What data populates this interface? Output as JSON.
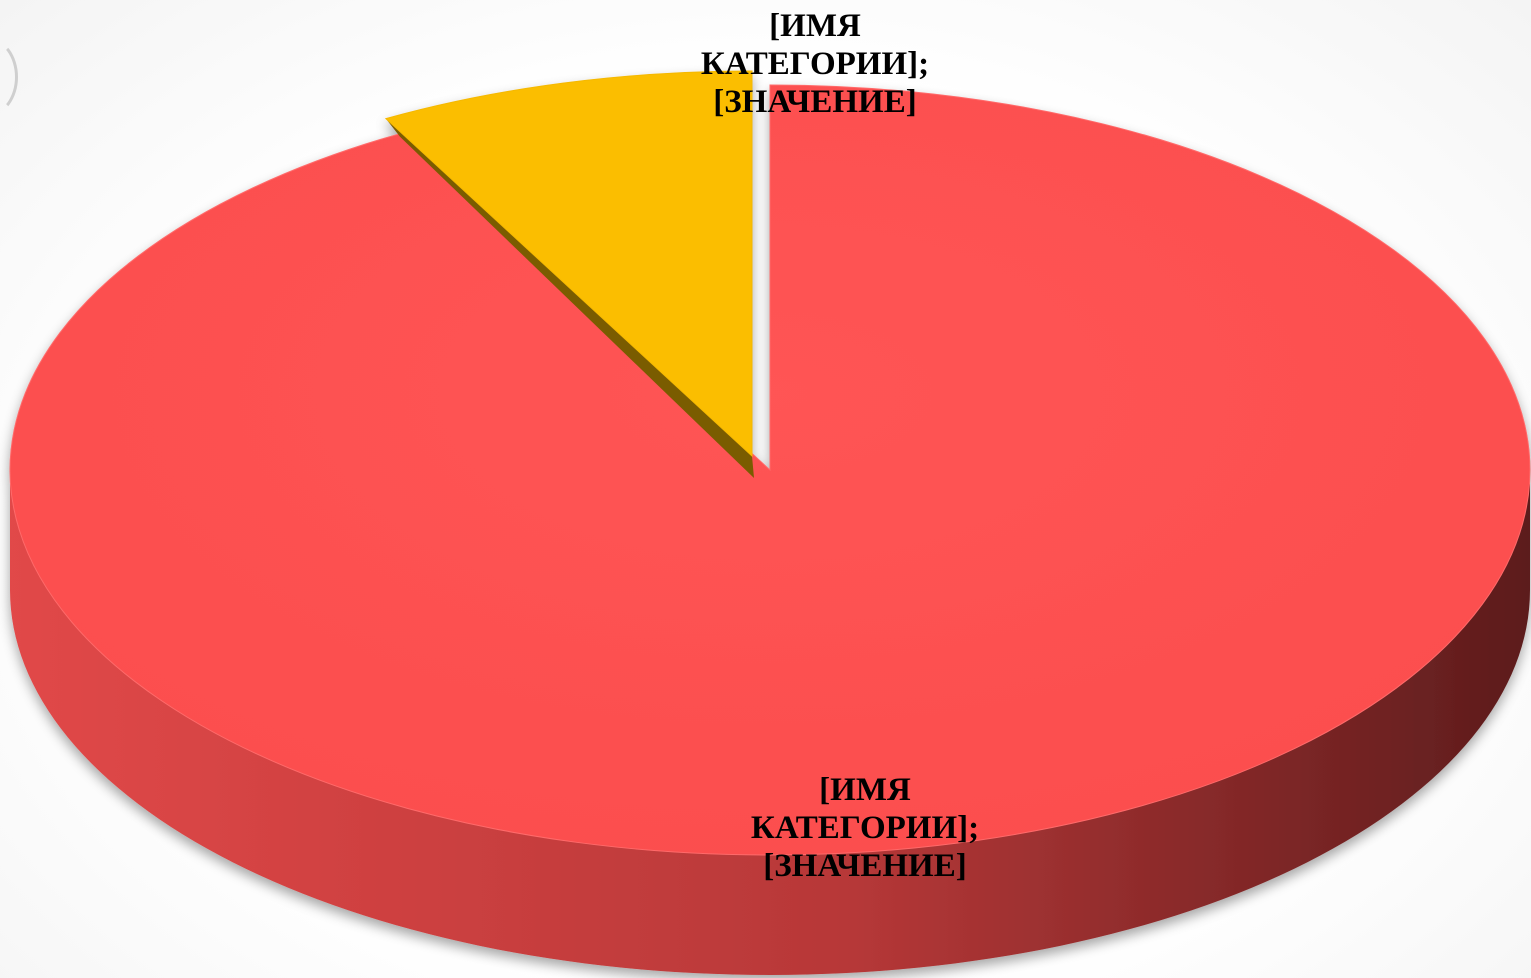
{
  "chart_data": {
    "type": "pie",
    "style": "3d-exploded",
    "categories": [
      "[ИМЯ КАТЕГОРИИ]",
      "[ИМЯ КАТЕГОРИИ]"
    ],
    "values": [
      8,
      92
    ],
    "labels": [
      [
        "[ИМЯ",
        "КАТЕГОРИИ];",
        "[ЗНАЧЕНИЕ]"
      ],
      [
        "[ИМЯ",
        "КАТЕГОРИИ];",
        "[ЗНАЧЕНИЕ]"
      ]
    ],
    "colors": [
      "#FBBE00",
      "#FE5151"
    ],
    "side_colors": [
      "#7A5C00",
      "#B03434"
    ],
    "title": "",
    "legend": "none"
  }
}
